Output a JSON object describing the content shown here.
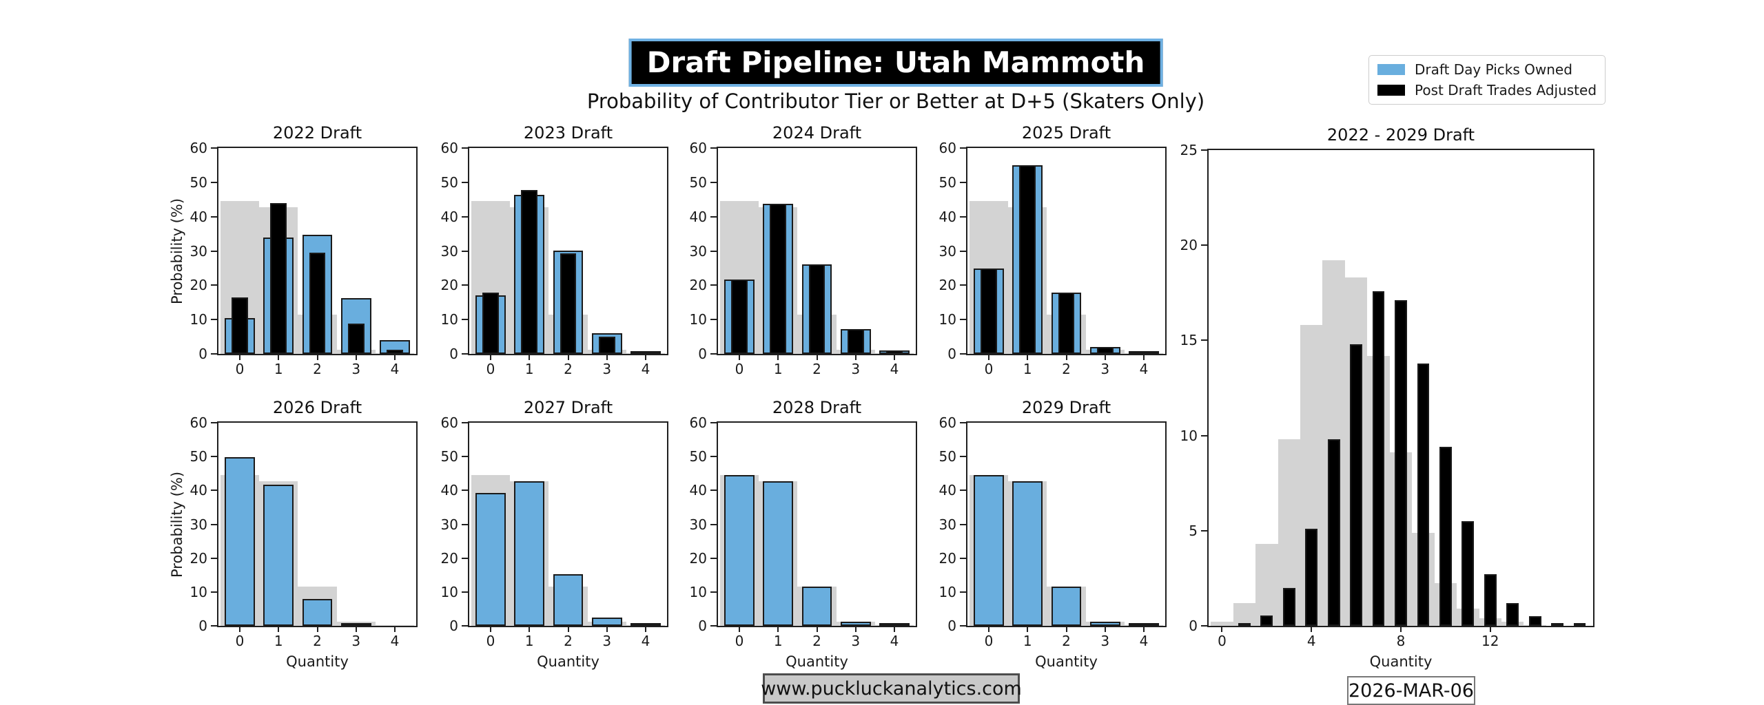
{
  "header": {
    "title": "Draft Pipeline: Utah Mammoth",
    "subtitle": "Probability of Contributor Tier or Better at D+5 (Skaters Only)"
  },
  "legend": {
    "position": "top-right",
    "items": [
      {
        "label": "Draft Day Picks Owned",
        "color": "#69aede"
      },
      {
        "label": "Post Draft Trades Adjusted",
        "color": "#000000"
      }
    ]
  },
  "footer": {
    "website": "www.puckluckanalytics.com",
    "date": "2026-MAR-06"
  },
  "colors": {
    "bar_blue": "#69aede",
    "bar_black": "#000000",
    "bar_gray": "#d3d3d3",
    "title_box_border": "#6fb1e3",
    "title_box_background": "#000000"
  },
  "chart_data": [
    {
      "type": "bar",
      "title": "2022 Draft",
      "xlabel": "",
      "ylabel": "Probability (%)",
      "x": [
        0,
        1,
        2,
        3,
        4
      ],
      "xticks": [
        0,
        1,
        2,
        3,
        4
      ],
      "xrange": [
        -0.55,
        4.55
      ],
      "ylim": [
        0,
        60
      ],
      "yticks": [
        0,
        10,
        20,
        30,
        40,
        50,
        60
      ],
      "grid": false,
      "series": [
        {
          "name": "",
          "color": "#d3d3d3",
          "bar_width": 1.0,
          "edge": false,
          "values": [
            44.5,
            42.8,
            11.5,
            1.3,
            0.15
          ]
        },
        {
          "name": "Draft Day Picks Owned",
          "color": "#69aede",
          "bar_width": 0.78,
          "edge": true,
          "values": [
            10.4,
            34.0,
            34.8,
            16.3,
            4.1
          ]
        },
        {
          "name": "Post Draft Trades Adjusted",
          "color": "#000000",
          "bar_width": 0.42,
          "edge": true,
          "values": [
            16.5,
            44.0,
            29.5,
            8.9,
            1.2
          ]
        }
      ]
    },
    {
      "type": "bar",
      "title": "2023 Draft",
      "xlabel": "",
      "ylabel": "",
      "x": [
        0,
        1,
        2,
        3,
        4
      ],
      "xticks": [
        0,
        1,
        2,
        3,
        4
      ],
      "xrange": [
        -0.55,
        4.55
      ],
      "ylim": [
        0,
        60
      ],
      "yticks": [
        0,
        10,
        20,
        30,
        40,
        50,
        60
      ],
      "grid": false,
      "series": [
        {
          "name": "",
          "color": "#d3d3d3",
          "bar_width": 1.0,
          "edge": false,
          "values": [
            44.5,
            42.8,
            11.5,
            1.3,
            0.15
          ]
        },
        {
          "name": "Draft Day Picks Owned",
          "color": "#69aede",
          "bar_width": 0.78,
          "edge": true,
          "values": [
            17.0,
            46.3,
            30.2,
            6.1,
            0.5
          ]
        },
        {
          "name": "Post Draft Trades Adjusted",
          "color": "#000000",
          "bar_width": 0.42,
          "edge": true,
          "values": [
            17.8,
            47.8,
            29.4,
            5.1,
            0.5
          ]
        }
      ]
    },
    {
      "type": "bar",
      "title": "2024 Draft",
      "xlabel": "",
      "ylabel": "",
      "x": [
        0,
        1,
        2,
        3,
        4
      ],
      "xticks": [
        0,
        1,
        2,
        3,
        4
      ],
      "xrange": [
        -0.55,
        4.55
      ],
      "ylim": [
        0,
        60
      ],
      "yticks": [
        0,
        10,
        20,
        30,
        40,
        50,
        60
      ],
      "grid": false,
      "series": [
        {
          "name": "",
          "color": "#d3d3d3",
          "bar_width": 1.0,
          "edge": false,
          "values": [
            44.5,
            42.8,
            11.5,
            1.3,
            0.15
          ]
        },
        {
          "name": "Draft Day Picks Owned",
          "color": "#69aede",
          "bar_width": 0.78,
          "edge": true,
          "values": [
            21.7,
            43.8,
            26.1,
            7.3,
            1.0
          ]
        },
        {
          "name": "Post Draft Trades Adjusted",
          "color": "#000000",
          "bar_width": 0.42,
          "edge": true,
          "values": [
            21.7,
            43.8,
            26.1,
            7.3,
            1.0
          ]
        }
      ]
    },
    {
      "type": "bar",
      "title": "2025 Draft",
      "xlabel": "",
      "ylabel": "",
      "x": [
        0,
        1,
        2,
        3,
        4
      ],
      "xticks": [
        0,
        1,
        2,
        3,
        4
      ],
      "xrange": [
        -0.55,
        4.55
      ],
      "ylim": [
        0,
        60
      ],
      "yticks": [
        0,
        10,
        20,
        30,
        40,
        50,
        60
      ],
      "grid": false,
      "series": [
        {
          "name": "",
          "color": "#d3d3d3",
          "bar_width": 1.0,
          "edge": false,
          "values": [
            44.5,
            42.8,
            11.5,
            1.3,
            0.15
          ]
        },
        {
          "name": "Draft Day Picks Owned",
          "color": "#69aede",
          "bar_width": 0.78,
          "edge": true,
          "values": [
            24.8,
            55.0,
            17.9,
            2.1,
            0.1
          ]
        },
        {
          "name": "Post Draft Trades Adjusted",
          "color": "#000000",
          "bar_width": 0.42,
          "edge": true,
          "values": [
            24.8,
            55.0,
            17.9,
            2.1,
            0.1
          ]
        }
      ]
    },
    {
      "type": "bar",
      "title": "2026 Draft",
      "xlabel": "Quantity",
      "ylabel": "Probability (%)",
      "x": [
        0,
        1,
        2,
        3,
        4
      ],
      "xticks": [
        0,
        1,
        2,
        3,
        4
      ],
      "xrange": [
        -0.55,
        4.55
      ],
      "ylim": [
        0,
        60
      ],
      "yticks": [
        0,
        10,
        20,
        30,
        40,
        50,
        60
      ],
      "grid": false,
      "series": [
        {
          "name": "",
          "color": "#d3d3d3",
          "bar_width": 1.0,
          "edge": false,
          "values": [
            44.5,
            42.8,
            11.5,
            1.3,
            0.15
          ]
        },
        {
          "name": "Draft Day Picks Owned",
          "color": "#69aede",
          "bar_width": 0.78,
          "edge": true,
          "values": [
            49.8,
            41.7,
            8.0,
            0.8,
            0
          ]
        }
      ]
    },
    {
      "type": "bar",
      "title": "2027 Draft",
      "xlabel": "Quantity",
      "ylabel": "",
      "x": [
        0,
        1,
        2,
        3,
        4
      ],
      "xticks": [
        0,
        1,
        2,
        3,
        4
      ],
      "xrange": [
        -0.55,
        4.55
      ],
      "ylim": [
        0,
        60
      ],
      "yticks": [
        0,
        10,
        20,
        30,
        40,
        50,
        60
      ],
      "grid": false,
      "series": [
        {
          "name": "",
          "color": "#d3d3d3",
          "bar_width": 1.0,
          "edge": false,
          "values": [
            44.5,
            42.8,
            11.5,
            1.3,
            0.15
          ]
        },
        {
          "name": "Draft Day Picks Owned",
          "color": "#69aede",
          "bar_width": 0.78,
          "edge": true,
          "values": [
            39.3,
            42.7,
            15.2,
            2.5,
            0.3
          ]
        }
      ]
    },
    {
      "type": "bar",
      "title": "2028 Draft",
      "xlabel": "Quantity",
      "ylabel": "",
      "x": [
        0,
        1,
        2,
        3,
        4
      ],
      "xticks": [
        0,
        1,
        2,
        3,
        4
      ],
      "xrange": [
        -0.55,
        4.55
      ],
      "ylim": [
        0,
        60
      ],
      "yticks": [
        0,
        10,
        20,
        30,
        40,
        50,
        60
      ],
      "grid": false,
      "series": [
        {
          "name": "",
          "color": "#d3d3d3",
          "bar_width": 1.0,
          "edge": false,
          "values": [
            44.5,
            42.8,
            11.5,
            1.3,
            0.15
          ]
        },
        {
          "name": "Draft Day Picks Owned",
          "color": "#69aede",
          "bar_width": 0.78,
          "edge": true,
          "values": [
            44.5,
            42.7,
            11.5,
            1.3,
            0.1
          ]
        }
      ]
    },
    {
      "type": "bar",
      "title": "2029 Draft",
      "xlabel": "Quantity",
      "ylabel": "",
      "x": [
        0,
        1,
        2,
        3,
        4
      ],
      "xticks": [
        0,
        1,
        2,
        3,
        4
      ],
      "xrange": [
        -0.55,
        4.55
      ],
      "ylim": [
        0,
        60
      ],
      "yticks": [
        0,
        10,
        20,
        30,
        40,
        50,
        60
      ],
      "grid": false,
      "series": [
        {
          "name": "",
          "color": "#d3d3d3",
          "bar_width": 1.0,
          "edge": false,
          "values": [
            44.5,
            42.8,
            11.5,
            1.3,
            0.15
          ]
        },
        {
          "name": "Draft Day Picks Owned",
          "color": "#69aede",
          "bar_width": 0.78,
          "edge": true,
          "values": [
            44.5,
            42.7,
            11.5,
            1.3,
            0.1
          ]
        }
      ]
    },
    {
      "type": "bar",
      "title": "2022 - 2029 Draft",
      "xlabel": "Quantity",
      "ylabel": "",
      "x": [
        0,
        1,
        2,
        3,
        4,
        5,
        6,
        7,
        8,
        9,
        10,
        11,
        12,
        13,
        14,
        15,
        16
      ],
      "xticks": [
        0,
        4,
        8,
        12
      ],
      "xrange": [
        -0.6,
        16.6
      ],
      "ylim": [
        0,
        25
      ],
      "yticks": [
        0,
        5,
        10,
        15,
        20,
        25
      ],
      "grid": false,
      "series": [
        {
          "name": "",
          "color": "#d3d3d3",
          "bar_width": 1.0,
          "edge": false,
          "values": [
            0.2,
            1.2,
            4.3,
            9.8,
            15.8,
            19.2,
            18.3,
            14.2,
            9.1,
            4.9,
            2.25,
            0.9,
            0.4,
            0.2,
            0.05,
            0,
            0
          ]
        },
        {
          "name": "Post Draft Trades Adjusted",
          "color": "#000000",
          "bar_width": 0.55,
          "edge": true,
          "values": [
            0,
            0.1,
            0.55,
            2.0,
            5.1,
            9.8,
            14.8,
            17.6,
            17.1,
            13.8,
            9.4,
            5.5,
            2.7,
            1.2,
            0.5,
            0.15,
            0.05
          ]
        }
      ]
    }
  ]
}
